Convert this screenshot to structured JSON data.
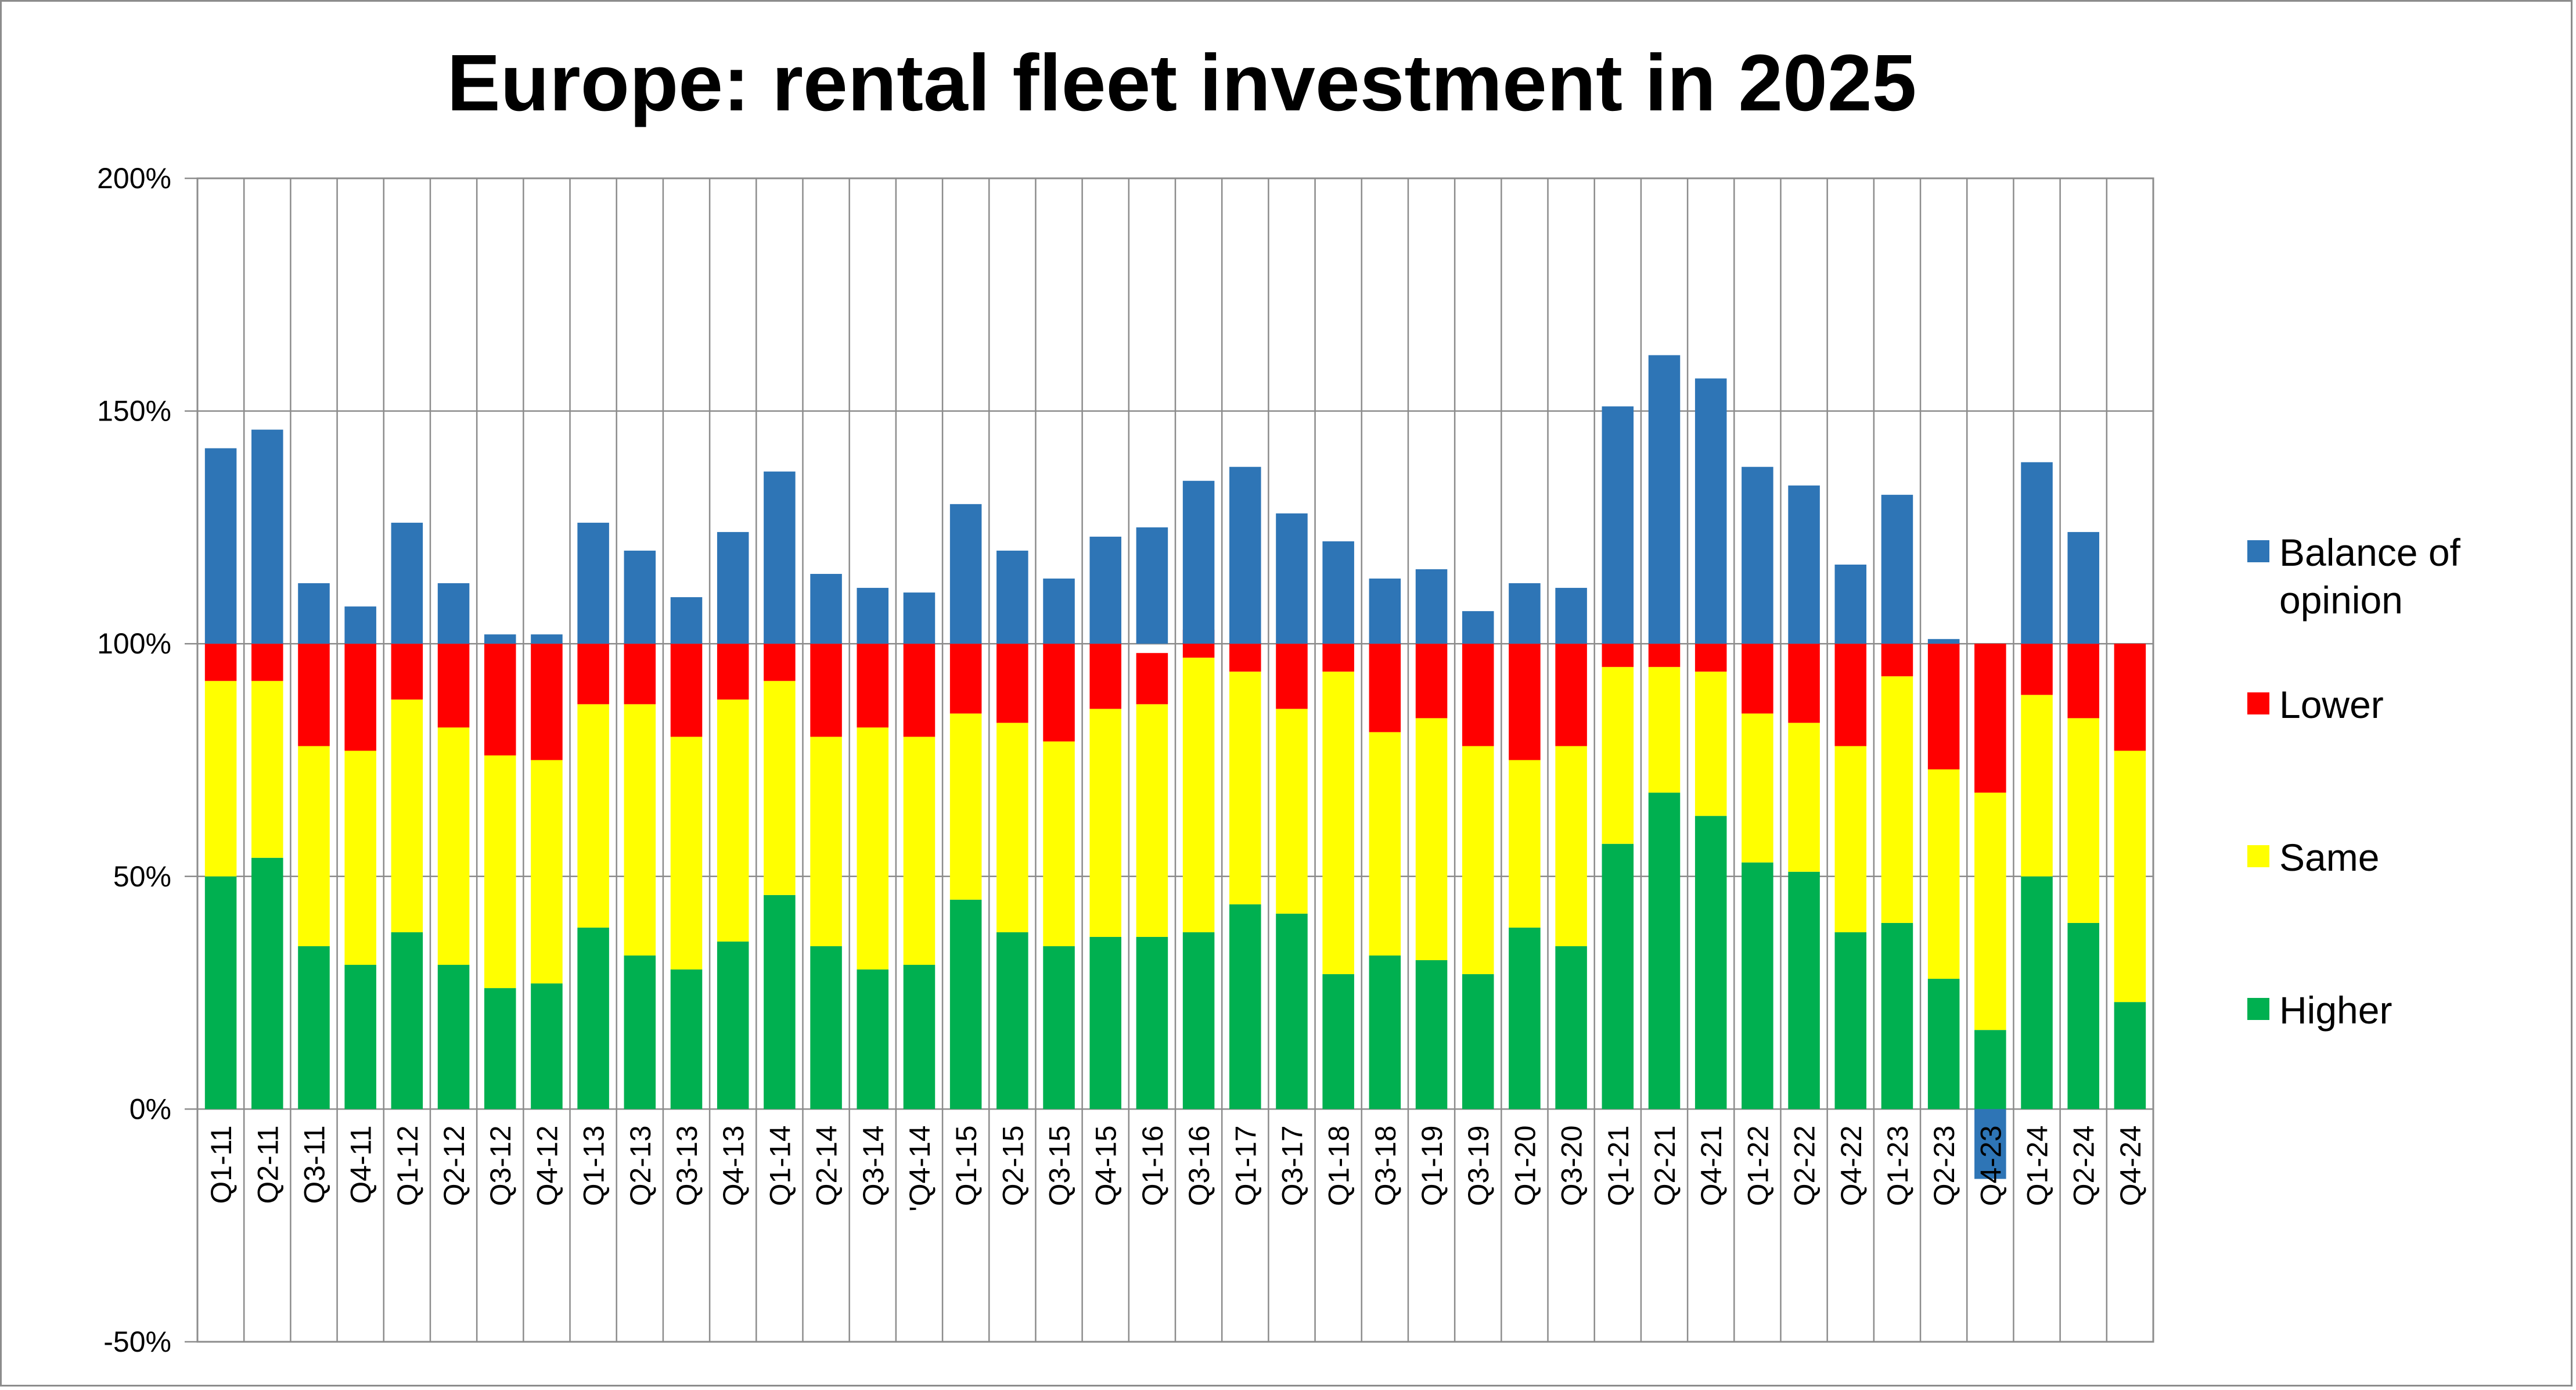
{
  "chart_data": {
    "type": "bar",
    "stacked": true,
    "title": "Europe: rental fleet investment in 2025",
    "xlabel": "",
    "ylabel": "",
    "ylim": [
      -50,
      200
    ],
    "yticks": [
      -50,
      0,
      50,
      100,
      150,
      200
    ],
    "ytick_labels": [
      "-50%",
      "0%",
      "50%",
      "100%",
      "150%",
      "200%"
    ],
    "grid": "vertical and horizontal gridlines",
    "legend_position": "right",
    "categories": [
      "Q1-11",
      "Q2-11",
      "Q3-11",
      "Q4-11",
      "Q1-12",
      "Q2-12",
      "Q3-12",
      "Q4-12",
      "Q1-13",
      "Q2-13",
      "Q3-13",
      "Q4-13",
      "Q1-14",
      "Q2-14",
      "Q3-14",
      "'Q4-14",
      "Q1-15",
      "Q2-15",
      "Q3-15",
      "Q4-15",
      "Q1-16",
      "Q3-16",
      "Q1-17",
      "Q3-17",
      "Q1-18",
      "Q3-18",
      "Q1-19",
      "Q3-19",
      "Q1-20",
      "Q3-20",
      "Q1-21",
      "Q2-21",
      "Q4-21",
      "Q1-22",
      "Q2-22",
      "Q4-22",
      "Q1-23",
      "Q2-23",
      "Q4-23",
      "Q1-24",
      "Q2-24",
      "Q4-24"
    ],
    "series": [
      {
        "name": "Higher",
        "color": "#00b050",
        "values": [
          50,
          54,
          35,
          31,
          38,
          31,
          26,
          27,
          39,
          33,
          30,
          36,
          46,
          35,
          30,
          31,
          45,
          38,
          35,
          37,
          37,
          38,
          44,
          42,
          29,
          33,
          32,
          29,
          39,
          35,
          57,
          68,
          63,
          53,
          51,
          38,
          40,
          28,
          17,
          50,
          40,
          23
        ]
      },
      {
        "name": "Same",
        "color": "#ffff00",
        "values": [
          42,
          38,
          43,
          46,
          50,
          51,
          50,
          48,
          48,
          54,
          50,
          52,
          46,
          45,
          52,
          49,
          40,
          45,
          44,
          49,
          50,
          59,
          50,
          44,
          65,
          48,
          52,
          49,
          36,
          43,
          38,
          27,
          31,
          32,
          32,
          40,
          53,
          45,
          51,
          39,
          44,
          54
        ]
      },
      {
        "name": "Lower",
        "color": "#ff0000",
        "values": [
          8,
          8,
          22,
          23,
          12,
          18,
          24,
          25,
          13,
          13,
          20,
          12,
          8,
          20,
          18,
          20,
          15,
          17,
          21,
          14,
          11,
          6,
          6,
          14,
          6,
          19,
          16,
          22,
          25,
          22,
          5,
          5,
          6,
          15,
          17,
          22,
          7,
          27,
          32,
          11,
          16,
          23
        ]
      },
      {
        "name": "Balance of opinion",
        "color": "#2e75b6",
        "values": [
          42,
          46,
          13,
          8,
          26,
          13,
          2,
          2,
          26,
          20,
          10,
          24,
          37,
          15,
          12,
          11,
          30,
          20,
          14,
          23,
          25,
          35,
          38,
          28,
          22,
          14,
          16,
          7,
          13,
          12,
          51,
          62,
          57,
          38,
          34,
          17,
          32,
          1,
          -15,
          39,
          24,
          0
        ]
      }
    ],
    "legend": [
      "Balance of opinion",
      "Lower",
      "Same",
      "Higher"
    ]
  }
}
